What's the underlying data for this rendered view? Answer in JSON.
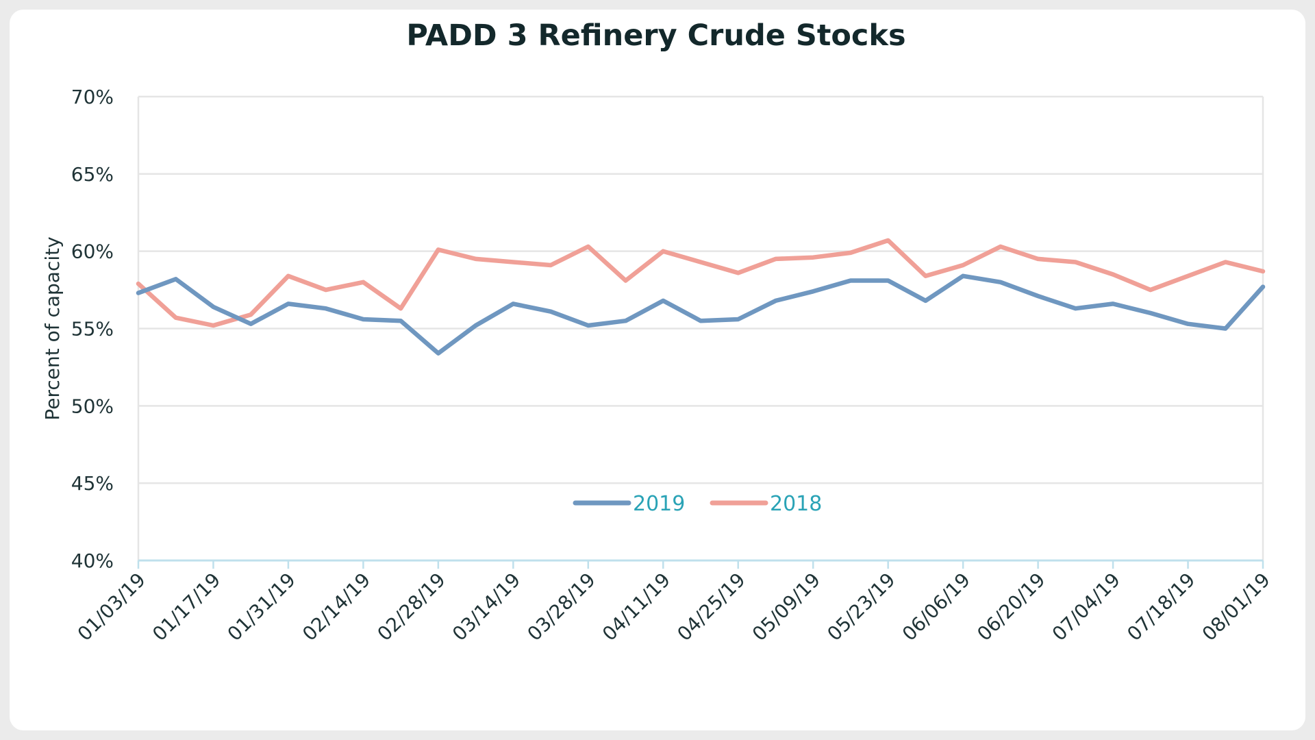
{
  "chart_data": {
    "type": "line",
    "title": "PADD 3 Refinery Crude Stocks",
    "xlabel": "",
    "ylabel": "Percent of capacity",
    "ylim": [
      40,
      70
    ],
    "yticks": [
      "40%",
      "45%",
      "50%",
      "55%",
      "60%",
      "65%",
      "70%"
    ],
    "xtick_labels": [
      "01/03/19",
      "01/17/19",
      "01/31/19",
      "02/14/19",
      "02/28/19",
      "03/14/19",
      "03/28/19",
      "04/11/19",
      "04/25/19",
      "05/09/19",
      "05/23/19",
      "06/06/19",
      "06/20/19",
      "07/04/19",
      "07/18/19",
      "08/01/19"
    ],
    "x": [
      "01/03/19",
      "01/10/19",
      "01/17/19",
      "01/24/19",
      "01/31/19",
      "02/07/19",
      "02/14/19",
      "02/21/19",
      "02/28/19",
      "03/07/19",
      "03/14/19",
      "03/21/19",
      "03/28/19",
      "04/04/19",
      "04/11/19",
      "04/18/19",
      "04/25/19",
      "05/02/19",
      "05/09/19",
      "05/16/19",
      "05/23/19",
      "05/30/19",
      "06/06/19",
      "06/13/19",
      "06/20/19",
      "06/27/19",
      "07/04/19",
      "07/11/19",
      "07/18/19",
      "07/25/19",
      "08/01/19"
    ],
    "grid": true,
    "legend_position": "center",
    "series": [
      {
        "name": "2019",
        "color": "#6f97c0",
        "values": [
          57.3,
          58.2,
          56.4,
          55.3,
          56.6,
          56.3,
          55.6,
          55.5,
          53.4,
          55.2,
          56.6,
          56.1,
          55.2,
          55.5,
          56.8,
          55.5,
          55.6,
          56.8,
          57.4,
          58.1,
          58.1,
          56.8,
          58.4,
          58.0,
          57.1,
          56.3,
          56.6,
          56.0,
          55.3,
          55.0,
          57.7
        ]
      },
      {
        "name": "2018",
        "color": "#f0a097",
        "values": [
          57.9,
          55.7,
          55.2,
          55.9,
          58.4,
          57.5,
          58.0,
          56.3,
          60.1,
          59.5,
          59.3,
          59.1,
          60.3,
          58.1,
          60.0,
          59.3,
          58.6,
          59.5,
          59.6,
          59.9,
          60.7,
          58.4,
          59.1,
          60.3,
          59.5,
          59.3,
          58.5,
          57.5,
          58.4,
          59.3,
          58.7
        ]
      }
    ]
  }
}
